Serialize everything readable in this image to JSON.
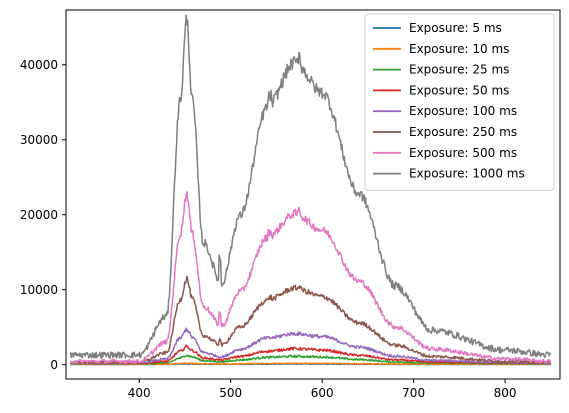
{
  "chart_data": {
    "type": "line",
    "title": "",
    "xlabel": "",
    "ylabel": "",
    "xlim": [
      320,
      860
    ],
    "ylim": [
      -1900,
      47300
    ],
    "xticks": [
      400,
      500,
      600,
      700,
      800
    ],
    "yticks": [
      0,
      10000,
      20000,
      30000,
      40000
    ],
    "grid": false,
    "legend_position": "top-right",
    "peak1_max_1000ms": 45000,
    "peak2_max_1000ms": 41000,
    "series": [
      {
        "name": "Exposure: 5 ms",
        "color": "#1f77b4",
        "baseline": 40,
        "noise": 20,
        "points": [
          [
            325,
            0
          ],
          [
            400,
            0
          ],
          [
            430,
            10
          ],
          [
            445,
            45
          ],
          [
            452,
            70
          ],
          [
            458,
            55
          ],
          [
            470,
            25
          ],
          [
            490,
            15
          ],
          [
            510,
            25
          ],
          [
            540,
            40
          ],
          [
            570,
            55
          ],
          [
            600,
            50
          ],
          [
            640,
            30
          ],
          [
            680,
            12
          ],
          [
            720,
            6
          ],
          [
            800,
            3
          ],
          [
            850,
            0
          ]
        ]
      },
      {
        "name": "Exposure: 10 ms",
        "color": "#ff7f0e",
        "baseline": 70,
        "noise": 35,
        "points": [
          [
            325,
            0
          ],
          [
            400,
            0
          ],
          [
            430,
            20
          ],
          [
            445,
            85
          ],
          [
            452,
            140
          ],
          [
            458,
            110
          ],
          [
            470,
            50
          ],
          [
            490,
            28
          ],
          [
            510,
            50
          ],
          [
            540,
            85
          ],
          [
            570,
            110
          ],
          [
            600,
            100
          ],
          [
            640,
            60
          ],
          [
            680,
            25
          ],
          [
            720,
            12
          ],
          [
            800,
            5
          ],
          [
            850,
            0
          ]
        ]
      },
      {
        "name": "Exposure: 25 ms",
        "color": "#2ca02c",
        "baseline": 140,
        "noise": 70,
        "points": [
          [
            325,
            0
          ],
          [
            400,
            0
          ],
          [
            430,
            100
          ],
          [
            445,
            750
          ],
          [
            452,
            1150
          ],
          [
            458,
            900
          ],
          [
            470,
            400
          ],
          [
            490,
            250
          ],
          [
            510,
            500
          ],
          [
            540,
            850
          ],
          [
            570,
            980
          ],
          [
            600,
            900
          ],
          [
            640,
            550
          ],
          [
            680,
            230
          ],
          [
            720,
            90
          ],
          [
            800,
            20
          ],
          [
            850,
            0
          ]
        ]
      },
      {
        "name": "Exposure: 50 ms",
        "color": "#d62728",
        "baseline": 200,
        "noise": 90,
        "points": [
          [
            325,
            0
          ],
          [
            400,
            0
          ],
          [
            430,
            250
          ],
          [
            445,
            1600
          ],
          [
            452,
            2250
          ],
          [
            458,
            1700
          ],
          [
            470,
            700
          ],
          [
            490,
            450
          ],
          [
            510,
            900
          ],
          [
            540,
            1600
          ],
          [
            570,
            1950
          ],
          [
            600,
            1750
          ],
          [
            640,
            1050
          ],
          [
            680,
            450
          ],
          [
            720,
            160
          ],
          [
            800,
            40
          ],
          [
            850,
            0
          ]
        ]
      },
      {
        "name": "Exposure: 100 ms",
        "color": "#9467bd",
        "baseline": 250,
        "noise": 120,
        "points": [
          [
            325,
            0
          ],
          [
            400,
            0
          ],
          [
            430,
            500
          ],
          [
            445,
            3300
          ],
          [
            452,
            4500
          ],
          [
            458,
            3400
          ],
          [
            470,
            1400
          ],
          [
            490,
            800
          ],
          [
            510,
            1800
          ],
          [
            540,
            3300
          ],
          [
            570,
            3900
          ],
          [
            600,
            3500
          ],
          [
            640,
            2100
          ],
          [
            680,
            900
          ],
          [
            720,
            320
          ],
          [
            800,
            70
          ],
          [
            850,
            0
          ]
        ]
      },
      {
        "name": "Exposure: 250 ms",
        "color": "#8c564b",
        "baseline": 300,
        "noise": 180,
        "points": [
          [
            325,
            0
          ],
          [
            400,
            0
          ],
          [
            430,
            1300
          ],
          [
            445,
            8400
          ],
          [
            452,
            11200
          ],
          [
            458,
            8500
          ],
          [
            470,
            3600
          ],
          [
            490,
            2300
          ],
          [
            510,
            4700
          ],
          [
            540,
            8300
          ],
          [
            570,
            9900
          ],
          [
            600,
            8800
          ],
          [
            640,
            5300
          ],
          [
            680,
            2300
          ],
          [
            720,
            800
          ],
          [
            800,
            170
          ],
          [
            850,
            0
          ]
        ]
      },
      {
        "name": "Exposure: 500 ms",
        "color": "#e377c2",
        "baseline": 450,
        "noise": 260,
        "points": [
          [
            325,
            0
          ],
          [
            400,
            0
          ],
          [
            430,
            2600
          ],
          [
            445,
            17000
          ],
          [
            452,
            22400
          ],
          [
            458,
            17000
          ],
          [
            470,
            7400
          ],
          [
            490,
            4700
          ],
          [
            510,
            9300
          ],
          [
            540,
            16500
          ],
          [
            570,
            19700
          ],
          [
            600,
            17500
          ],
          [
            640,
            10700
          ],
          [
            680,
            4600
          ],
          [
            720,
            1650
          ],
          [
            800,
            330
          ],
          [
            850,
            0
          ]
        ]
      },
      {
        "name": "Exposure: 1000 ms",
        "color": "#7f7f7f",
        "baseline": 1300,
        "noise": 420,
        "points": [
          [
            325,
            0
          ],
          [
            400,
            0
          ],
          [
            430,
            5200
          ],
          [
            445,
            34000
          ],
          [
            452,
            44800
          ],
          [
            458,
            34000
          ],
          [
            470,
            15000
          ],
          [
            490,
            9500
          ],
          [
            510,
            18500
          ],
          [
            540,
            33000
          ],
          [
            570,
            39000
          ],
          [
            600,
            35000
          ],
          [
            640,
            21500
          ],
          [
            680,
            9200
          ],
          [
            720,
            3300
          ],
          [
            800,
            650
          ],
          [
            850,
            0
          ]
        ]
      }
    ]
  }
}
